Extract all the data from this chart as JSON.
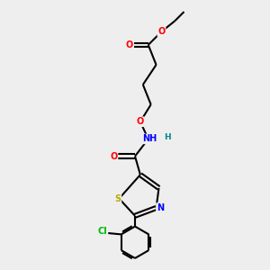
{
  "background_color": "#eeeeee",
  "bond_color": "#000000",
  "bond_width": 1.5,
  "atom_colors": {
    "O": "#ff0000",
    "N": "#0000ff",
    "S": "#bbaa00",
    "Cl": "#00bb00",
    "C": "#000000",
    "H": "#008888"
  },
  "font_size": 7.0,
  "xlim": [
    0,
    10
  ],
  "ylim": [
    0,
    10
  ]
}
